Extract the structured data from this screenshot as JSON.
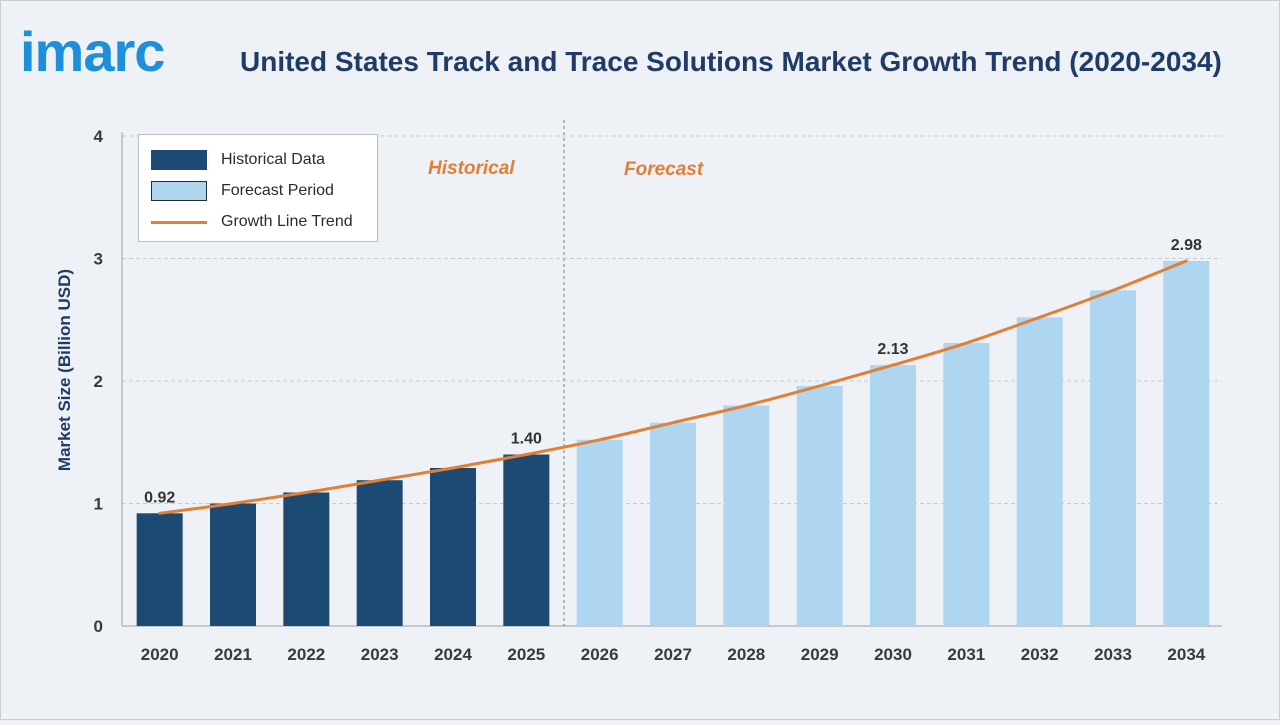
{
  "header": {
    "logo_text": "imarc",
    "title": "United States Track and Trace Solutions Market Growth Trend (2020-2034)"
  },
  "legend": {
    "historical": "Historical Data",
    "forecast": "Forecast Period",
    "trend": "Growth Line Trend"
  },
  "period_labels": {
    "historical": "Historical",
    "forecast": "Forecast"
  },
  "colors": {
    "historical": "#1c4a72",
    "forecast": "#aed6f0",
    "trend": "#e07f35",
    "title": "#1f3c66"
  },
  "chart_data": {
    "type": "bar",
    "title": "United States Track and Trace Solutions Market Growth Trend (2020-2034)",
    "ylabel": "Market Size (Billion USD)",
    "xlabel": "",
    "ylim": [
      0,
      4
    ],
    "yticks": [
      0,
      1,
      2,
      3,
      4
    ],
    "grid": true,
    "legend_position": "top-left",
    "categories": [
      "2020",
      "2021",
      "2022",
      "2023",
      "2024",
      "2025",
      "2026",
      "2027",
      "2028",
      "2029",
      "2030",
      "2031",
      "2032",
      "2033",
      "2034"
    ],
    "values": [
      0.92,
      1.0,
      1.09,
      1.19,
      1.29,
      1.4,
      1.52,
      1.66,
      1.8,
      1.96,
      2.13,
      2.31,
      2.52,
      2.74,
      2.98
    ],
    "historical_count": 6,
    "data_labels": {
      "2020": "0.92",
      "2025": "1.40",
      "2030": "2.13",
      "2034": "2.98"
    }
  }
}
